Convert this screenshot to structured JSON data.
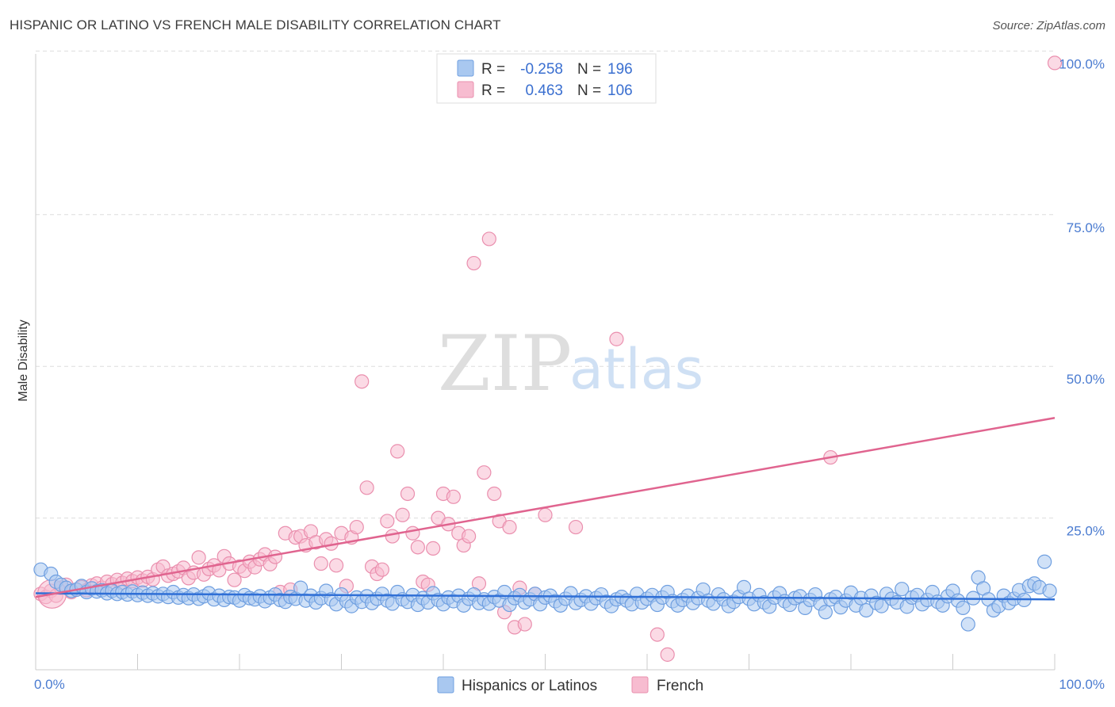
{
  "title": "HISPANIC OR LATINO VS FRENCH MALE DISABILITY CORRELATION CHART",
  "source": "Source: ZipAtlas.com",
  "watermark": {
    "left": "ZIP",
    "right": "atlas"
  },
  "legend_top": {
    "rows": [
      {
        "r_label": "R =",
        "r_value": "-0.258",
        "n_label": "N =",
        "n_value": "196"
      },
      {
        "r_label": "R =",
        "r_value": "0.463",
        "n_label": "N =",
        "n_value": "106"
      }
    ]
  },
  "legend_bottom": [
    "Hispanics or Latinos",
    "French"
  ],
  "colors": {
    "blue_fill": "#a9c8f0",
    "blue_stroke": "#6f9fe0",
    "blue_line": "#2f6fd6",
    "pink_fill": "#f7bcd0",
    "pink_stroke": "#ea8fae",
    "pink_line": "#e0648f",
    "grid": "#dddddd",
    "tick_label": "#4a7bd0"
  },
  "chart_data": {
    "type": "scatter",
    "title": "HISPANIC OR LATINO VS FRENCH MALE DISABILITY CORRELATION CHART",
    "xlabel": "",
    "ylabel": "Male Disability",
    "xlim": [
      0,
      100
    ],
    "ylim": [
      0,
      105
    ],
    "x_tick_labels": [
      "0.0%",
      "100.0%"
    ],
    "y_tick_labels": [
      "25.0%",
      "50.0%",
      "75.0%",
      "100.0%"
    ],
    "y_ticks": [
      25,
      50,
      75,
      100
    ],
    "grid": "horizontal dashed",
    "legend_placement": "top-center and bottom",
    "series": [
      {
        "name": "Hispanics or Latinos",
        "r": -0.258,
        "n": 196,
        "trend": {
          "x": [
            0,
            100
          ],
          "y": [
            12.6,
            11.6
          ]
        },
        "points": [
          [
            0.5,
            16.5
          ],
          [
            1.5,
            15.8
          ],
          [
            2,
            14.5
          ],
          [
            2.5,
            14
          ],
          [
            3,
            13.5
          ],
          [
            3.5,
            13
          ],
          [
            4,
            13.2
          ],
          [
            4.5,
            13.8
          ],
          [
            5,
            12.8
          ],
          [
            5.5,
            13.4
          ],
          [
            6,
            12.9
          ],
          [
            6.5,
            13.1
          ],
          [
            7,
            12.6
          ],
          [
            7.5,
            13
          ],
          [
            8,
            12.5
          ],
          [
            8.5,
            12.8
          ],
          [
            9,
            12.4
          ],
          [
            9.5,
            12.9
          ],
          [
            10,
            12.3
          ],
          [
            10.5,
            12.7
          ],
          [
            11,
            12.2
          ],
          [
            11.5,
            12.6
          ],
          [
            12,
            12.1
          ],
          [
            12.5,
            12.5
          ],
          [
            13,
            12
          ],
          [
            13.5,
            12.8
          ],
          [
            14,
            11.9
          ],
          [
            14.5,
            12.3
          ],
          [
            15,
            11.8
          ],
          [
            15.5,
            12.4
          ],
          [
            16,
            11.7
          ],
          [
            16.5,
            12.1
          ],
          [
            17,
            12.6
          ],
          [
            17.5,
            11.6
          ],
          [
            18,
            12.2
          ],
          [
            18.5,
            11.5
          ],
          [
            19,
            12
          ],
          [
            19.5,
            11.9
          ],
          [
            20,
            11.4
          ],
          [
            20.5,
            12.3
          ],
          [
            21,
            11.8
          ],
          [
            21.5,
            11.6
          ],
          [
            22,
            12.1
          ],
          [
            22.5,
            11.3
          ],
          [
            23,
            11.9
          ],
          [
            23.5,
            12.4
          ],
          [
            24,
            11.5
          ],
          [
            24.5,
            11.2
          ],
          [
            25,
            12
          ],
          [
            25.5,
            11.7
          ],
          [
            26,
            13.5
          ],
          [
            26.5,
            11.4
          ],
          [
            27,
            12.2
          ],
          [
            27.5,
            11.1
          ],
          [
            28,
            11.8
          ],
          [
            28.5,
            13
          ],
          [
            29,
            11.6
          ],
          [
            29.5,
            10.8
          ],
          [
            30,
            12.4
          ],
          [
            30.5,
            11.3
          ],
          [
            31,
            10.5
          ],
          [
            31.5,
            11.9
          ],
          [
            32,
            11.2
          ],
          [
            32.5,
            12.1
          ],
          [
            33,
            11
          ],
          [
            33.5,
            11.7
          ],
          [
            34,
            12.5
          ],
          [
            34.5,
            11.4
          ],
          [
            35,
            10.9
          ],
          [
            35.5,
            12.8
          ],
          [
            36,
            11.6
          ],
          [
            36.5,
            11.2
          ],
          [
            37,
            12.3
          ],
          [
            37.5,
            10.7
          ],
          [
            38,
            11.8
          ],
          [
            38.5,
            11.1
          ],
          [
            39,
            12.6
          ],
          [
            39.5,
            11.5
          ],
          [
            40,
            10.8
          ],
          [
            40.5,
            11.9
          ],
          [
            41,
            11.3
          ],
          [
            41.5,
            12.2
          ],
          [
            42,
            10.6
          ],
          [
            42.5,
            11.7
          ],
          [
            43,
            12.4
          ],
          [
            43.5,
            11
          ],
          [
            44,
            11.6
          ],
          [
            44.5,
            10.9
          ],
          [
            45,
            12
          ],
          [
            45.5,
            11.4
          ],
          [
            46,
            12.8
          ],
          [
            46.5,
            10.7
          ],
          [
            47,
            11.8
          ],
          [
            47.5,
            12.3
          ],
          [
            48,
            11.1
          ],
          [
            48.5,
            11.6
          ],
          [
            49,
            12.5
          ],
          [
            49.5,
            10.8
          ],
          [
            50,
            11.9
          ],
          [
            50.5,
            12.2
          ],
          [
            51,
            11.3
          ],
          [
            51.5,
            10.6
          ],
          [
            52,
            11.7
          ],
          [
            52.5,
            12.6
          ],
          [
            53,
            11
          ],
          [
            53.5,
            11.5
          ],
          [
            54,
            12.1
          ],
          [
            54.5,
            10.9
          ],
          [
            55,
            11.8
          ],
          [
            55.5,
            12.4
          ],
          [
            56,
            11.2
          ],
          [
            56.5,
            10.5
          ],
          [
            57,
            11.6
          ],
          [
            57.5,
            12
          ],
          [
            58,
            11.4
          ],
          [
            58.5,
            10.8
          ],
          [
            59,
            12.5
          ],
          [
            59.5,
            11.1
          ],
          [
            60,
            11.7
          ],
          [
            60.5,
            12.3
          ],
          [
            61,
            10.7
          ],
          [
            61.5,
            11.9
          ],
          [
            62,
            12.8
          ],
          [
            62.5,
            11.3
          ],
          [
            63,
            10.6
          ],
          [
            63.5,
            11.5
          ],
          [
            64,
            12.2
          ],
          [
            64.5,
            11
          ],
          [
            65,
            11.8
          ],
          [
            65.5,
            13.2
          ],
          [
            66,
            11.4
          ],
          [
            66.5,
            10.9
          ],
          [
            67,
            12.4
          ],
          [
            67.5,
            11.6
          ],
          [
            68,
            10.5
          ],
          [
            68.5,
            11.2
          ],
          [
            69,
            12
          ],
          [
            69.5,
            13.6
          ],
          [
            70,
            11.7
          ],
          [
            70.5,
            10.8
          ],
          [
            71,
            12.3
          ],
          [
            71.5,
            11.1
          ],
          [
            72,
            10.4
          ],
          [
            72.5,
            11.9
          ],
          [
            73,
            12.6
          ],
          [
            73.5,
            11.3
          ],
          [
            74,
            10.7
          ],
          [
            74.5,
            11.8
          ],
          [
            75,
            12.1
          ],
          [
            75.5,
            10.2
          ],
          [
            76,
            11.5
          ],
          [
            76.5,
            12.4
          ],
          [
            77,
            10.9
          ],
          [
            77.5,
            9.5
          ],
          [
            78,
            11.6
          ],
          [
            78.5,
            12
          ],
          [
            79,
            10.3
          ],
          [
            79.5,
            11.4
          ],
          [
            80,
            12.7
          ],
          [
            80.5,
            10.6
          ],
          [
            81,
            11.8
          ],
          [
            81.5,
            9.8
          ],
          [
            82,
            12.2
          ],
          [
            82.5,
            11
          ],
          [
            83,
            10.5
          ],
          [
            83.5,
            12.5
          ],
          [
            84,
            11.7
          ],
          [
            84.5,
            11.1
          ],
          [
            85,
            13.3
          ],
          [
            85.5,
            10.4
          ],
          [
            86,
            11.9
          ],
          [
            86.5,
            12.3
          ],
          [
            87,
            10.8
          ],
          [
            87.5,
            11.5
          ],
          [
            88,
            12.8
          ],
          [
            88.5,
            11.2
          ],
          [
            89,
            10.6
          ],
          [
            89.5,
            12.1
          ],
          [
            90,
            13
          ],
          [
            90.5,
            11.4
          ],
          [
            91,
            10.2
          ],
          [
            91.5,
            7.5
          ],
          [
            92,
            11.8
          ],
          [
            92.5,
            15.2
          ],
          [
            93,
            13.4
          ],
          [
            93.5,
            11.6
          ],
          [
            94,
            9.8
          ],
          [
            94.5,
            10.5
          ],
          [
            95,
            12.2
          ],
          [
            95.5,
            11
          ],
          [
            96,
            11.7
          ],
          [
            96.5,
            13.1
          ],
          [
            97,
            11.5
          ],
          [
            97.5,
            13.8
          ],
          [
            98,
            14.2
          ],
          [
            98.5,
            13.6
          ],
          [
            99,
            17.8
          ],
          [
            99.5,
            13
          ]
        ]
      },
      {
        "name": "French",
        "r": 0.463,
        "n": 106,
        "trend": {
          "x": [
            0,
            100
          ],
          "y": [
            12.0,
            41.5
          ]
        },
        "points": [
          [
            0.5,
            12.5
          ],
          [
            1,
            12
          ],
          [
            1.5,
            13
          ],
          [
            2,
            12.2
          ],
          [
            2.5,
            13.5
          ],
          [
            3,
            14
          ],
          [
            3.5,
            12.8
          ],
          [
            4,
            13.2
          ],
          [
            4.5,
            13.6
          ],
          [
            5,
            13.1
          ],
          [
            5.5,
            13.9
          ],
          [
            6,
            14.2
          ],
          [
            6.5,
            13.5
          ],
          [
            7,
            14.5
          ],
          [
            7.5,
            14.1
          ],
          [
            8,
            14.8
          ],
          [
            8.5,
            14.3
          ],
          [
            9,
            15
          ],
          [
            9.5,
            14.6
          ],
          [
            10,
            15.2
          ],
          [
            10.5,
            14.7
          ],
          [
            11,
            15.3
          ],
          [
            11.5,
            14.9
          ],
          [
            12,
            16.5
          ],
          [
            12.5,
            17
          ],
          [
            13,
            15.5
          ],
          [
            13.5,
            15.8
          ],
          [
            14,
            16.2
          ],
          [
            14.5,
            16.8
          ],
          [
            15,
            15.1
          ],
          [
            15.5,
            16
          ],
          [
            16,
            18.5
          ],
          [
            16.5,
            15.7
          ],
          [
            17,
            16.6
          ],
          [
            17.5,
            17.2
          ],
          [
            18,
            16.4
          ],
          [
            18.5,
            18.7
          ],
          [
            19,
            17.5
          ],
          [
            19.5,
            14.8
          ],
          [
            20,
            17
          ],
          [
            20.5,
            16.3
          ],
          [
            21,
            17.8
          ],
          [
            21.5,
            16.9
          ],
          [
            22,
            18.2
          ],
          [
            22.5,
            19
          ],
          [
            23,
            17.4
          ],
          [
            23.5,
            18.6
          ],
          [
            24,
            12.8
          ],
          [
            24.5,
            22.5
          ],
          [
            25,
            13.2
          ],
          [
            25.5,
            21.8
          ],
          [
            26,
            22
          ],
          [
            26.5,
            20.5
          ],
          [
            27,
            22.8
          ],
          [
            27.5,
            21
          ],
          [
            28,
            17.5
          ],
          [
            28.5,
            21.5
          ],
          [
            29,
            20.8
          ],
          [
            29.5,
            17.2
          ],
          [
            30,
            22.5
          ],
          [
            30.5,
            13.8
          ],
          [
            31,
            21.8
          ],
          [
            31.5,
            23.5
          ],
          [
            32,
            47.5
          ],
          [
            32.5,
            30
          ],
          [
            33,
            17
          ],
          [
            33.5,
            15.8
          ],
          [
            34,
            16.5
          ],
          [
            34.5,
            24.5
          ],
          [
            35,
            22
          ],
          [
            35.5,
            36
          ],
          [
            36,
            25.5
          ],
          [
            36.5,
            29
          ],
          [
            37,
            22.5
          ],
          [
            37.5,
            20.2
          ],
          [
            38,
            14.5
          ],
          [
            38.5,
            14
          ],
          [
            39,
            20
          ],
          [
            39.5,
            25
          ],
          [
            40,
            29
          ],
          [
            40.5,
            24
          ],
          [
            41,
            28.5
          ],
          [
            41.5,
            22.5
          ],
          [
            42,
            20.5
          ],
          [
            42.5,
            22
          ],
          [
            43,
            67
          ],
          [
            43.5,
            14.2
          ],
          [
            44,
            32.5
          ],
          [
            44.5,
            71
          ],
          [
            45,
            29
          ],
          [
            45.5,
            24.5
          ],
          [
            46,
            9.5
          ],
          [
            46.5,
            23.5
          ],
          [
            47,
            7
          ],
          [
            47.5,
            13.5
          ],
          [
            48,
            7.5
          ],
          [
            49,
            12.5
          ],
          [
            50,
            25.5
          ],
          [
            53,
            23.5
          ],
          [
            57,
            54.5
          ],
          [
            61,
            5.8
          ],
          [
            62,
            2.5
          ],
          [
            78,
            35
          ],
          [
            100,
            100
          ]
        ]
      }
    ]
  }
}
